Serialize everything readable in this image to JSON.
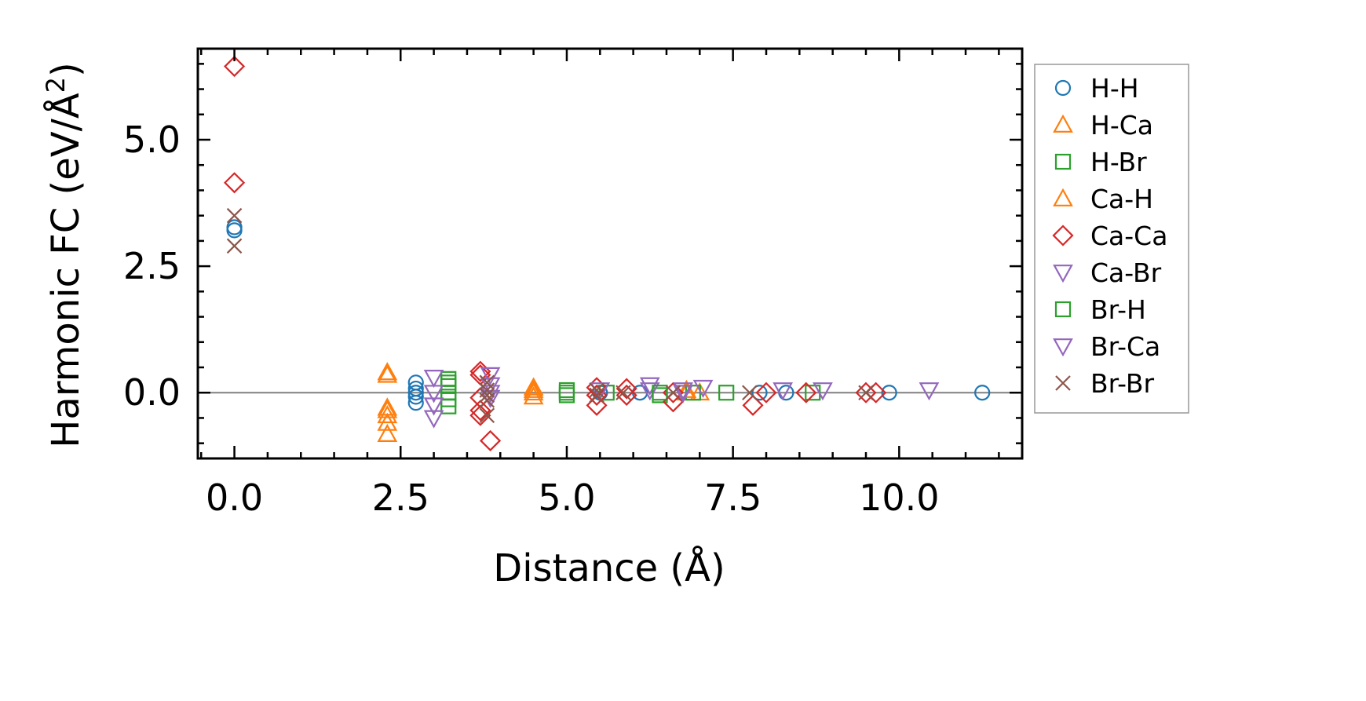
{
  "chart_data": {
    "type": "scatter",
    "title": "",
    "xlabel": "Distance (Å)",
    "ylabel_main": "Harmonic FC (eV/Å",
    "ylabel_sup": "2",
    "ylabel_close": ")",
    "xlim": [
      -0.55,
      11.85
    ],
    "ylim": [
      -1.3,
      6.8
    ],
    "xticks": [
      0.0,
      2.5,
      5.0,
      7.5,
      10.0
    ],
    "xtick_labels": [
      "0.0",
      "2.5",
      "5.0",
      "7.5",
      "10.0"
    ],
    "yticks": [
      0.0,
      2.5,
      5.0
    ],
    "ytick_labels": [
      "0.0",
      "2.5",
      "5.0"
    ],
    "zero_line": true,
    "grid": false,
    "legend_position": "outside-right",
    "series": [
      {
        "name": "H-H",
        "color": "#1f77b4",
        "marker": "circle",
        "points": [
          [
            0,
            3.27
          ],
          [
            0,
            3.21
          ],
          [
            2.73,
            0.2
          ],
          [
            2.73,
            0.08
          ],
          [
            2.73,
            0.0
          ],
          [
            2.73,
            -0.08
          ],
          [
            2.73,
            -0.2
          ],
          [
            5.5,
            0.0
          ],
          [
            6.1,
            0.0
          ],
          [
            7.9,
            0.0
          ],
          [
            8.3,
            0.0
          ],
          [
            9.85,
            0.0
          ],
          [
            11.25,
            0.0
          ]
        ]
      },
      {
        "name": "H-Ca",
        "color": "#ff7f0e",
        "marker": "triangle-up",
        "points": [
          [
            2.3,
            0.35
          ],
          [
            2.3,
            -0.35
          ],
          [
            2.3,
            -0.45
          ],
          [
            2.3,
            -0.6
          ],
          [
            2.3,
            -0.82
          ],
          [
            4.5,
            0.1
          ],
          [
            4.5,
            0.0
          ],
          [
            4.5,
            -0.08
          ],
          [
            6.8,
            0.0
          ],
          [
            7.0,
            0.0
          ]
        ]
      },
      {
        "name": "H-Br",
        "color": "#2ca02c",
        "marker": "square",
        "points": [
          [
            3.22,
            0.27
          ],
          [
            3.22,
            0.13
          ],
          [
            3.22,
            0.0
          ],
          [
            3.22,
            -0.13
          ],
          [
            3.22,
            -0.27
          ],
          [
            5.0,
            0.05
          ],
          [
            5.0,
            -0.05
          ],
          [
            5.6,
            0.0
          ],
          [
            6.4,
            -0.05
          ],
          [
            6.9,
            0.0
          ],
          [
            7.4,
            0.0
          ],
          [
            8.7,
            0.0
          ]
        ]
      },
      {
        "name": "Ca-H",
        "color": "#ff7f0e",
        "marker": "triangle-up",
        "points": [
          [
            2.3,
            0.4
          ],
          [
            2.3,
            -0.3
          ],
          [
            4.5,
            0.05
          ],
          [
            6.8,
            0.05
          ]
        ]
      },
      {
        "name": "Ca-Ca",
        "color": "#d62728",
        "marker": "diamond",
        "points": [
          [
            0,
            6.45
          ],
          [
            0,
            4.15
          ],
          [
            3.7,
            0.42
          ],
          [
            3.7,
            0.35
          ],
          [
            3.7,
            -0.1
          ],
          [
            3.7,
            -0.35
          ],
          [
            3.7,
            -0.45
          ],
          [
            3.85,
            -0.95
          ],
          [
            5.45,
            0.1
          ],
          [
            5.45,
            -0.05
          ],
          [
            5.45,
            -0.25
          ],
          [
            5.9,
            0.08
          ],
          [
            5.9,
            -0.05
          ],
          [
            6.6,
            0.0
          ],
          [
            6.6,
            -0.18
          ],
          [
            7.8,
            -0.25
          ],
          [
            8.0,
            0.0
          ],
          [
            8.6,
            0.0
          ],
          [
            9.5,
            0.0
          ],
          [
            9.65,
            0.0
          ]
        ]
      },
      {
        "name": "Ca-Br",
        "color": "#9467bd",
        "marker": "triangle-down",
        "points": [
          [
            3.0,
            0.3
          ],
          [
            3.0,
            -0.25
          ],
          [
            3.0,
            -0.5
          ],
          [
            3.85,
            0.35
          ],
          [
            3.85,
            0.15
          ],
          [
            5.5,
            0.05
          ],
          [
            6.25,
            0.15
          ],
          [
            6.25,
            0.05
          ],
          [
            6.75,
            0.05
          ],
          [
            7.05,
            0.1
          ],
          [
            8.25,
            0.05
          ],
          [
            8.85,
            0.05
          ],
          [
            10.45,
            0.05
          ]
        ]
      },
      {
        "name": "Br-H",
        "color": "#2ca02c",
        "marker": "square",
        "points": [
          [
            3.22,
            0.2
          ],
          [
            5.0,
            0.0
          ],
          [
            6.4,
            0.0
          ]
        ]
      },
      {
        "name": "Br-Ca",
        "color": "#9467bd",
        "marker": "triangle-down",
        "points": [
          [
            3.0,
            0.0
          ],
          [
            3.85,
            0.0
          ],
          [
            3.85,
            -0.1
          ],
          [
            6.75,
            0.0
          ]
        ]
      },
      {
        "name": "Br-Br",
        "color": "#8c564b",
        "marker": "x",
        "points": [
          [
            0,
            3.5
          ],
          [
            0,
            2.9
          ],
          [
            3.8,
            0.2
          ],
          [
            3.8,
            0.05
          ],
          [
            3.8,
            -0.05
          ],
          [
            3.8,
            -0.15
          ],
          [
            3.8,
            -0.45
          ],
          [
            5.45,
            0.05
          ],
          [
            5.45,
            -0.05
          ],
          [
            5.85,
            0.0
          ],
          [
            6.6,
            0.0
          ],
          [
            7.75,
            0.0
          ],
          [
            9.5,
            0.0
          ]
        ]
      }
    ]
  }
}
